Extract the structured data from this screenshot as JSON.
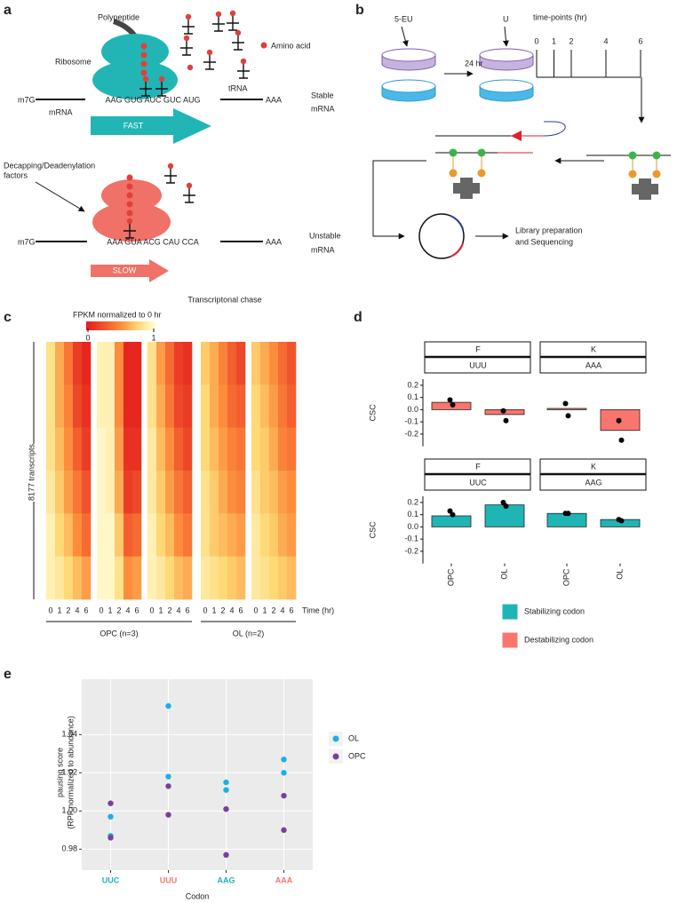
{
  "panel_a": {
    "label": "a",
    "polypeptide": "Polypeptide",
    "amino_acid": "Amino acid",
    "ribosome": "Ribosome",
    "trna": "tRNA",
    "stable": {
      "cap": "m7G",
      "codons": "AAG GUG AUC GUC AUG",
      "tail": "AAA",
      "mrna": "mRNA",
      "label": [
        "Stable",
        "mRNA"
      ],
      "speed": "FAST"
    },
    "unstable": {
      "factors": [
        "Decapping/Deadenylation",
        "factors"
      ],
      "cap": "m7G",
      "codons": "AAA GUA ACG CAU CCA",
      "tail": "AAA",
      "label": [
        "Unstable",
        "mRNA"
      ],
      "speed": "SLOW"
    }
  },
  "panel_b": {
    "label": "b",
    "label_5eu": "5-EU",
    "incubation": "24 hr",
    "chase": "U",
    "timepoints_title": "time-points (hr)",
    "timepoints": [
      0,
      1,
      2,
      4,
      6
    ],
    "library": [
      "Library preparation",
      "and Sequencing"
    ]
  },
  "chart_data": [
    {
      "type": "heatmap",
      "panel_label": "c",
      "title": "Transcriptonal chase",
      "colorbar_title": "FPKM normalized to 0 hr",
      "colorbar_ticks": [
        0,
        1
      ],
      "ylabel": "8177 transcripts",
      "xlabel": "Time (hr)",
      "time_labels": [
        0,
        1,
        2,
        4,
        6
      ],
      "groups": [
        {
          "label": "OPC (n=3)",
          "samples": [
            [
              [
                0.8,
                0.6,
                0.4,
                0.15,
                0.05
              ],
              [
                0.8,
                0.6,
                0.45,
                0.2,
                0.1
              ],
              [
                0.8,
                0.65,
                0.5,
                0.3,
                0.15
              ],
              [
                0.85,
                0.7,
                0.55,
                0.4,
                0.25
              ],
              [
                0.9,
                0.75,
                0.65,
                0.5,
                0.35
              ],
              [
                0.9,
                0.85,
                0.75,
                0.65,
                0.55
              ]
            ],
            [
              [
                0.9,
                0.9,
                0.5,
                0.05,
                0.05
              ],
              [
                0.9,
                0.9,
                0.5,
                0.05,
                0.05
              ],
              [
                0.95,
                0.9,
                0.55,
                0.1,
                0.1
              ],
              [
                0.95,
                0.9,
                0.6,
                0.15,
                0.2
              ],
              [
                0.95,
                0.95,
                0.7,
                0.3,
                0.35
              ],
              [
                0.95,
                0.95,
                0.8,
                0.5,
                0.55
              ]
            ],
            [
              [
                0.8,
                0.55,
                0.35,
                0.15,
                0.1
              ],
              [
                0.8,
                0.6,
                0.4,
                0.2,
                0.15
              ],
              [
                0.85,
                0.65,
                0.5,
                0.3,
                0.2
              ],
              [
                0.85,
                0.7,
                0.55,
                0.4,
                0.3
              ],
              [
                0.9,
                0.75,
                0.65,
                0.5,
                0.4
              ],
              [
                0.9,
                0.85,
                0.75,
                0.65,
                0.6
              ]
            ]
          ]
        },
        {
          "label": "OL (n=2)",
          "samples": [
            [
              [
                0.7,
                0.6,
                0.45,
                0.3,
                0.2
              ],
              [
                0.75,
                0.6,
                0.5,
                0.35,
                0.3
              ],
              [
                0.75,
                0.65,
                0.55,
                0.45,
                0.4
              ],
              [
                0.8,
                0.7,
                0.6,
                0.5,
                0.45
              ],
              [
                0.8,
                0.7,
                0.65,
                0.6,
                0.55
              ],
              [
                0.85,
                0.8,
                0.75,
                0.7,
                0.65
              ]
            ],
            [
              [
                0.7,
                0.6,
                0.5,
                0.35,
                0.25
              ],
              [
                0.75,
                0.65,
                0.55,
                0.4,
                0.3
              ],
              [
                0.75,
                0.7,
                0.6,
                0.45,
                0.4
              ],
              [
                0.8,
                0.7,
                0.65,
                0.55,
                0.5
              ],
              [
                0.85,
                0.75,
                0.7,
                0.6,
                0.55
              ],
              [
                0.85,
                0.8,
                0.75,
                0.7,
                0.65
              ]
            ]
          ]
        }
      ]
    },
    {
      "type": "bar",
      "panel_label": "d",
      "ylabel": "CSC",
      "categories": [
        "OPC",
        "OL"
      ],
      "ylim": [
        -0.3,
        0.25
      ],
      "yticks": [
        -0.2,
        -0.1,
        {
          "value": 0,
          "label": "0.0"
        },
        0.1,
        0.2
      ],
      "facets": [
        {
          "header": "F",
          "codon": "UUU",
          "color": "#f8766d",
          "values": [
            0.06,
            -0.04
          ],
          "points": [
            [
              0.08,
              0.04
            ],
            [
              -0.01,
              -0.09
            ]
          ]
        },
        {
          "header": "K",
          "codon": "AAA",
          "color": "#f8766d",
          "values": [
            0.01,
            -0.17
          ],
          "points": [
            [
              0.05,
              -0.05
            ],
            [
              -0.09,
              -0.25
            ]
          ]
        },
        {
          "header": "F",
          "codon": "UUC",
          "color": "#1fb5b5",
          "values": [
            0.09,
            0.18
          ],
          "points": [
            [
              0.13,
              0.1
            ],
            [
              0.2,
              0.17
            ]
          ]
        },
        {
          "header": "K",
          "codon": "AAG",
          "color": "#1fb5b5",
          "values": [
            0.11,
            0.06
          ],
          "points": [
            [
              0.11,
              0.11
            ],
            [
              0.06,
              0.05
            ]
          ]
        }
      ],
      "legend": [
        {
          "name": "Stabilizing codon",
          "color": "#1fb5b5"
        },
        {
          "name": "Destabilizing codon",
          "color": "#f8766d"
        }
      ]
    },
    {
      "type": "scatter",
      "panel_label": "e",
      "ylabel": [
        "pausing score",
        "(RPF normalized to abundance)"
      ],
      "xlabel": "Codon",
      "categories": [
        "UUC",
        "UUU",
        "AAG",
        "AAA"
      ],
      "category_colors": [
        "#1fb5b5",
        "#f8766d",
        "#1fb5b5",
        "#f8766d"
      ],
      "ylim": [
        0.969,
        1.069
      ],
      "yticks": [
        {
          "value": 0.98,
          "label": "0.98"
        },
        {
          "value": 1.0,
          "label": "1.00"
        },
        {
          "value": 1.02,
          "label": "1.02"
        },
        {
          "value": 1.04,
          "label": "1.04"
        }
      ],
      "grid": true,
      "series": [
        {
          "name": "OL",
          "color": "#1ab0e8",
          "values": [
            [
              0.997,
              0.987
            ],
            [
              1.055,
              1.018
            ],
            [
              1.015,
              1.011
            ],
            [
              1.027,
              1.02
            ]
          ]
        },
        {
          "name": "OPC",
          "color": "#7b3f99",
          "values": [
            [
              1.004,
              0.986
            ],
            [
              1.013,
              0.998
            ],
            [
              1.001,
              0.977
            ],
            [
              1.008,
              0.99
            ]
          ]
        }
      ]
    }
  ]
}
